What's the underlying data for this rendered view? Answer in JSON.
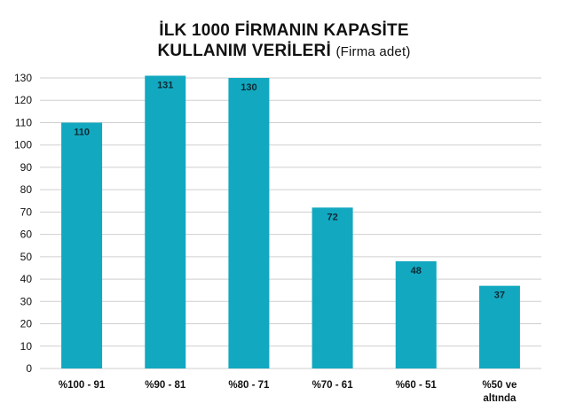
{
  "chart_data": {
    "type": "bar",
    "title_line1": "İLK 1000 FİRMANIN KAPASİTE",
    "title_line2": "KULLANIM VERİLERİ",
    "subtitle": "(Firma adet)",
    "categories": [
      [
        "%100 - 91"
      ],
      [
        "%90 - 81"
      ],
      [
        "%80 - 71"
      ],
      [
        "%70 - 61"
      ],
      [
        "%60 - 51"
      ],
      [
        "%50 ve",
        "altında"
      ]
    ],
    "values": [
      110,
      131,
      130,
      72,
      48,
      37
    ],
    "ylim": [
      0,
      130
    ],
    "yticks": [
      0,
      10,
      20,
      30,
      40,
      50,
      60,
      70,
      80,
      90,
      100,
      110,
      120,
      130
    ],
    "grid": true,
    "bar_color": "#12a8c0",
    "grid_color": "#cfcfcf"
  }
}
